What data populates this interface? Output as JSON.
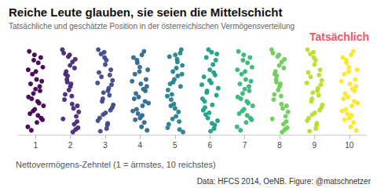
{
  "chart_data": {
    "type": "scatter",
    "title": "Reiche Leute glauben, sie seien die Mittelschicht",
    "subtitle": "Tatsächliche und geschätzte Position in der österreichischen Vermögensverteilung",
    "annotation": "Tatsächlich",
    "xlabel": "Nettovermögens-Zehntel (1 = ärmstes, 10 reichstes)",
    "source": "Data: HFCS 2014, OeNB. Figure: @matschnetzer",
    "xlim": [
      0.5,
      10.5
    ],
    "xticks": [
      1,
      2,
      3,
      4,
      5,
      6,
      7,
      8,
      9,
      10
    ],
    "ylim": [
      0,
      1
    ],
    "tick_labels": "x",
    "grid": false,
    "series": [
      {
        "color": "#440154",
        "x": [
          0.82,
          1.15,
          0.97,
          1.08,
          0.79,
          1.21,
          0.91,
          1.03,
          0.86,
          1.18,
          1,
          0.94,
          1.12,
          0.8,
          1.06,
          0.89,
          1.23,
          0.98,
          1.1,
          0.84,
          1.16,
          0.93,
          1.04,
          0.78,
          1.2,
          0.88,
          1.01,
          1.13,
          0.95,
          1.07
        ],
        "values": [
          0.95,
          0.88,
          0.91,
          0.82,
          0.74,
          0.77,
          0.69,
          0.63,
          0.58,
          0.61,
          0.52,
          0.47,
          0.55,
          0.43,
          0.38,
          0.41,
          0.33,
          0.29,
          0.36,
          0.24,
          0.19,
          0.27,
          0.14,
          0.09,
          0.17,
          0.05,
          0.72,
          0.5,
          0.85,
          0.22
        ]
      },
      {
        "color": "#482878",
        "x": [
          2.11,
          1.81,
          2.05,
          1.92,
          2.22,
          1.99,
          1.85,
          2.17,
          2.02,
          1.77,
          2.09,
          1.88,
          2.19,
          1.96,
          2.14,
          1.83,
          2.07,
          1.9,
          2.24,
          1.94,
          2,
          1.79,
          2.12,
          2.04,
          1.86,
          2.2,
          1.98,
          2.15,
          1.91,
          2.06
        ],
        "values": [
          0.12,
          0.93,
          0.35,
          0.67,
          0.08,
          0.79,
          0.46,
          0.21,
          0.58,
          0.97,
          0.3,
          0.72,
          0.15,
          0.51,
          0.86,
          0.4,
          0.03,
          0.63,
          0.26,
          0.89,
          0.55,
          0.18,
          0.76,
          0.44,
          0.69,
          0.33,
          0.91,
          0.06,
          0.6,
          0.83
        ]
      },
      {
        "color": "#3e4989",
        "x": [
          2.82,
          3.15,
          2.97,
          3.08,
          2.79,
          3.21,
          2.91,
          3.03,
          2.86,
          3.18,
          3,
          2.94,
          3.12,
          2.8,
          3.06,
          2.89,
          3.23,
          2.98,
          3.1,
          2.84,
          3.16,
          2.93,
          3.04,
          2.78,
          3.2,
          2.88,
          3.01,
          3.13,
          2.95,
          3.07
        ],
        "values": [
          0.71,
          0.28,
          0.94,
          0.5,
          0.16,
          0.62,
          0.38,
          0.85,
          0.04,
          0.57,
          0.8,
          0.23,
          0.45,
          0.97,
          0.11,
          0.66,
          0.34,
          0.88,
          0.53,
          0.19,
          0.74,
          0.41,
          0.07,
          0.59,
          0.31,
          0.92,
          0.25,
          0.68,
          0.48,
          0.13
        ]
      },
      {
        "color": "#31688e",
        "x": [
          4.11,
          3.81,
          4.05,
          3.92,
          4.22,
          3.99,
          3.85,
          4.17,
          4.02,
          3.77,
          4.09,
          3.88,
          4.19,
          3.96,
          4.14,
          3.83,
          4.07,
          3.9,
          4.24,
          3.94,
          4,
          3.79,
          4.12,
          4.04,
          3.86,
          4.2,
          3.98,
          4.15,
          3.91,
          4.06
        ],
        "values": [
          0.95,
          0.88,
          0.91,
          0.82,
          0.74,
          0.77,
          0.69,
          0.63,
          0.58,
          0.61,
          0.52,
          0.47,
          0.55,
          0.43,
          0.38,
          0.41,
          0.33,
          0.29,
          0.36,
          0.24,
          0.19,
          0.27,
          0.14,
          0.09,
          0.17,
          0.05,
          0.72,
          0.5,
          0.85,
          0.22
        ]
      },
      {
        "color": "#26828e",
        "x": [
          4.82,
          5.15,
          4.97,
          5.08,
          4.79,
          5.21,
          4.91,
          5.03,
          4.86,
          5.18,
          5,
          4.94,
          5.12,
          4.8,
          5.06,
          4.89,
          5.23,
          4.98,
          5.1,
          4.84,
          5.16,
          4.93,
          5.04,
          4.78,
          5.2,
          4.88,
          5.01,
          5.13,
          4.95,
          5.07
        ],
        "values": [
          0.12,
          0.93,
          0.35,
          0.67,
          0.08,
          0.79,
          0.46,
          0.21,
          0.58,
          0.97,
          0.3,
          0.72,
          0.15,
          0.51,
          0.86,
          0.4,
          0.03,
          0.63,
          0.26,
          0.89,
          0.55,
          0.18,
          0.76,
          0.44,
          0.69,
          0.33,
          0.91,
          0.06,
          0.6,
          0.83
        ]
      },
      {
        "color": "#1f9e89",
        "x": [
          6.11,
          5.81,
          6.05,
          5.92,
          6.22,
          5.99,
          5.85,
          6.17,
          6.02,
          5.77,
          6.09,
          5.88,
          6.19,
          5.96,
          6.14,
          5.83,
          6.07,
          5.9,
          6.24,
          5.94,
          6,
          5.79,
          6.12,
          6.04,
          5.86,
          6.2,
          5.98,
          6.15,
          5.91,
          6.06
        ],
        "values": [
          0.71,
          0.28,
          0.94,
          0.5,
          0.16,
          0.62,
          0.38,
          0.85,
          0.04,
          0.57,
          0.8,
          0.23,
          0.45,
          0.97,
          0.11,
          0.66,
          0.34,
          0.88,
          0.53,
          0.19,
          0.74,
          0.41,
          0.07,
          0.59,
          0.31,
          0.92,
          0.25,
          0.68,
          0.48,
          0.13
        ]
      },
      {
        "color": "#35b779",
        "x": [
          6.82,
          7.15,
          6.97,
          7.08,
          6.79,
          7.21,
          6.91,
          7.03,
          6.86,
          7.18,
          7,
          6.94,
          7.12,
          6.8,
          7.06,
          6.89,
          7.23,
          6.98,
          7.1,
          6.84,
          7.16,
          6.93,
          7.04,
          6.78,
          7.2,
          6.88,
          7.01,
          7.13,
          6.95,
          7.07
        ],
        "values": [
          0.95,
          0.88,
          0.91,
          0.82,
          0.74,
          0.77,
          0.69,
          0.63,
          0.58,
          0.61,
          0.52,
          0.47,
          0.55,
          0.43,
          0.38,
          0.41,
          0.33,
          0.29,
          0.36,
          0.24,
          0.19,
          0.27,
          0.14,
          0.09,
          0.17,
          0.05,
          0.72,
          0.5,
          0.85,
          0.22
        ]
      },
      {
        "color": "#6ece58",
        "x": [
          8.11,
          7.81,
          8.05,
          7.92,
          8.22,
          7.99,
          7.85,
          8.17,
          8.02,
          7.77,
          8.09,
          7.88,
          8.19,
          7.96,
          8.14,
          7.83,
          8.07,
          7.9,
          8.24,
          7.94,
          8,
          7.79,
          8.12,
          8.04,
          7.86,
          8.2,
          7.98,
          8.15,
          7.91,
          8.06
        ],
        "values": [
          0.12,
          0.93,
          0.35,
          0.67,
          0.08,
          0.79,
          0.46,
          0.21,
          0.58,
          0.97,
          0.3,
          0.72,
          0.15,
          0.51,
          0.86,
          0.4,
          0.03,
          0.63,
          0.26,
          0.89,
          0.55,
          0.18,
          0.76,
          0.44,
          0.69,
          0.33,
          0.91,
          0.06,
          0.6,
          0.83
        ]
      },
      {
        "color": "#b5de2b",
        "x": [
          8.82,
          9.15,
          8.97,
          9.08,
          8.79,
          9.21,
          8.91,
          9.03,
          8.86,
          9.18,
          9,
          8.94,
          9.12,
          8.8,
          9.06,
          8.89,
          9.23,
          8.98,
          9.1,
          8.84,
          9.16,
          8.93,
          9.04,
          8.78,
          9.2,
          8.88,
          9.01,
          9.13,
          8.95,
          9.07
        ],
        "values": [
          0.71,
          0.28,
          0.94,
          0.5,
          0.16,
          0.62,
          0.38,
          0.85,
          0.04,
          0.57,
          0.8,
          0.23,
          0.45,
          0.97,
          0.11,
          0.66,
          0.34,
          0.88,
          0.53,
          0.19,
          0.74,
          0.41,
          0.07,
          0.59,
          0.31,
          0.92,
          0.25,
          0.68,
          0.48,
          0.13
        ]
      },
      {
        "color": "#fde725",
        "x": [
          10.11,
          9.81,
          10.05,
          9.92,
          10.22,
          9.99,
          9.85,
          10.17,
          10.02,
          9.77,
          10.09,
          9.88,
          10.19,
          9.96,
          10.14,
          9.83,
          10.07,
          9.9,
          10.24,
          9.94,
          10,
          9.79,
          10.12,
          10.04,
          9.86,
          10.2,
          9.98,
          10.15,
          9.91,
          10.06
        ],
        "values": [
          0.95,
          0.88,
          0.91,
          0.82,
          0.74,
          0.77,
          0.69,
          0.63,
          0.58,
          0.61,
          0.52,
          0.47,
          0.55,
          0.43,
          0.38,
          0.41,
          0.33,
          0.29,
          0.36,
          0.24,
          0.19,
          0.27,
          0.14,
          0.09,
          0.17,
          0.05,
          0.72,
          0.5,
          0.85,
          0.22
        ]
      }
    ]
  }
}
